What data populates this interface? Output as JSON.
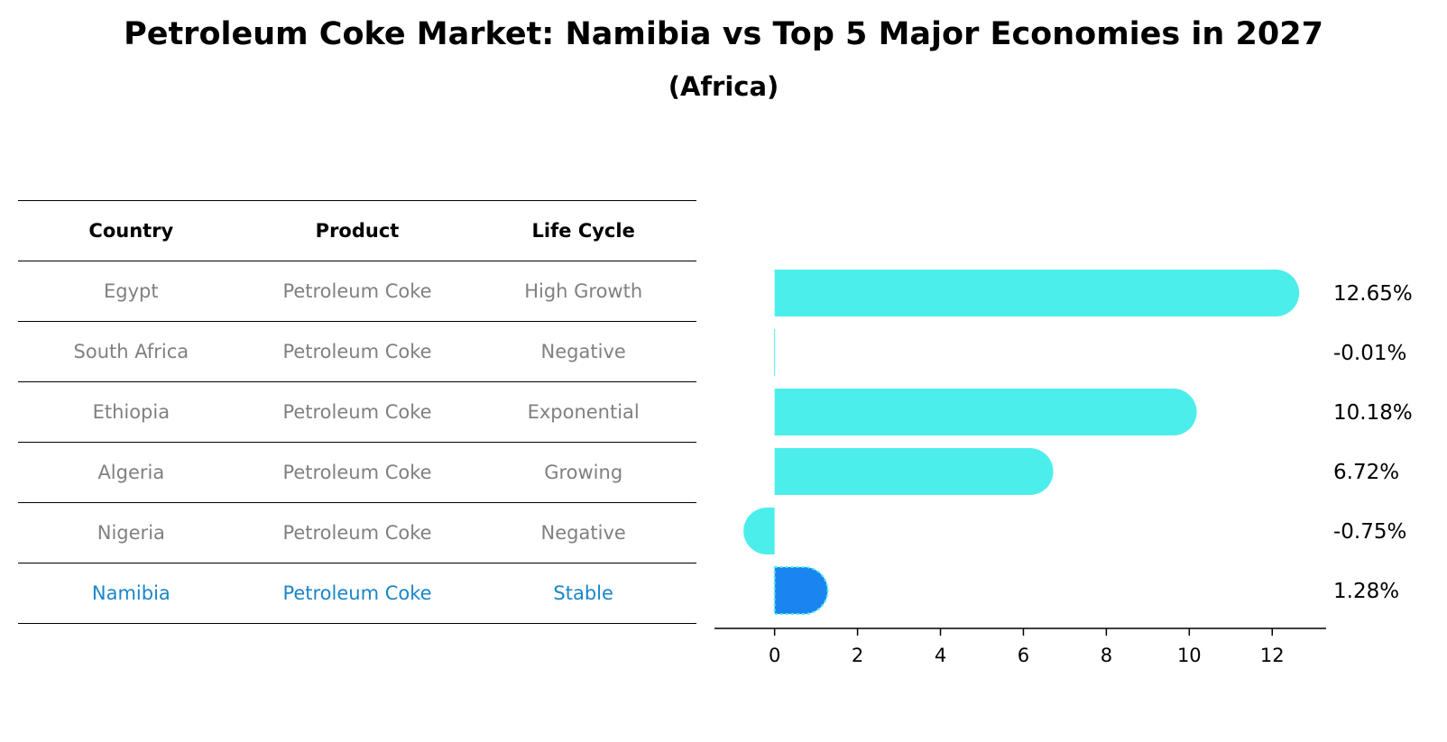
{
  "title": "Petroleum Coke Market: Namibia vs Top 5 Major Economies in 2027",
  "subtitle": "(Africa)",
  "table": {
    "headers": [
      "Country",
      "Product",
      "Life Cycle"
    ],
    "rows": [
      [
        "Egypt",
        "Petroleum Coke",
        "High Growth"
      ],
      [
        "South Africa",
        "Petroleum Coke",
        "Negative"
      ],
      [
        "Ethiopia",
        "Petroleum Coke",
        "Exponential"
      ],
      [
        "Algeria",
        "Petroleum Coke",
        "Growing"
      ],
      [
        "Nigeria",
        "Petroleum Coke",
        "Negative"
      ],
      [
        "Namibia",
        "Petroleum Coke",
        "Stable"
      ]
    ],
    "highlight_row": 5
  },
  "chart_data": {
    "type": "bar",
    "orientation": "horizontal",
    "categories": [
      "Egypt",
      "South Africa",
      "Ethiopia",
      "Algeria",
      "Nigeria",
      "Namibia"
    ],
    "values": [
      12.65,
      -0.01,
      10.18,
      6.72,
      -0.75,
      1.28
    ],
    "value_labels": [
      "12.65%",
      "-0.01%",
      "10.18%",
      "6.72%",
      "-0.75%",
      "1.28%"
    ],
    "xlim": [
      -1.45,
      13.3
    ],
    "xticks": [
      0,
      2,
      4,
      6,
      8,
      10,
      12
    ],
    "xtick_labels": [
      "0",
      "2",
      "4",
      "6",
      "8",
      "10",
      "12"
    ],
    "grid": false,
    "colors": {
      "default": "#4ceeec",
      "highlight": "#1a85f0"
    },
    "highlight_category": "Namibia"
  }
}
